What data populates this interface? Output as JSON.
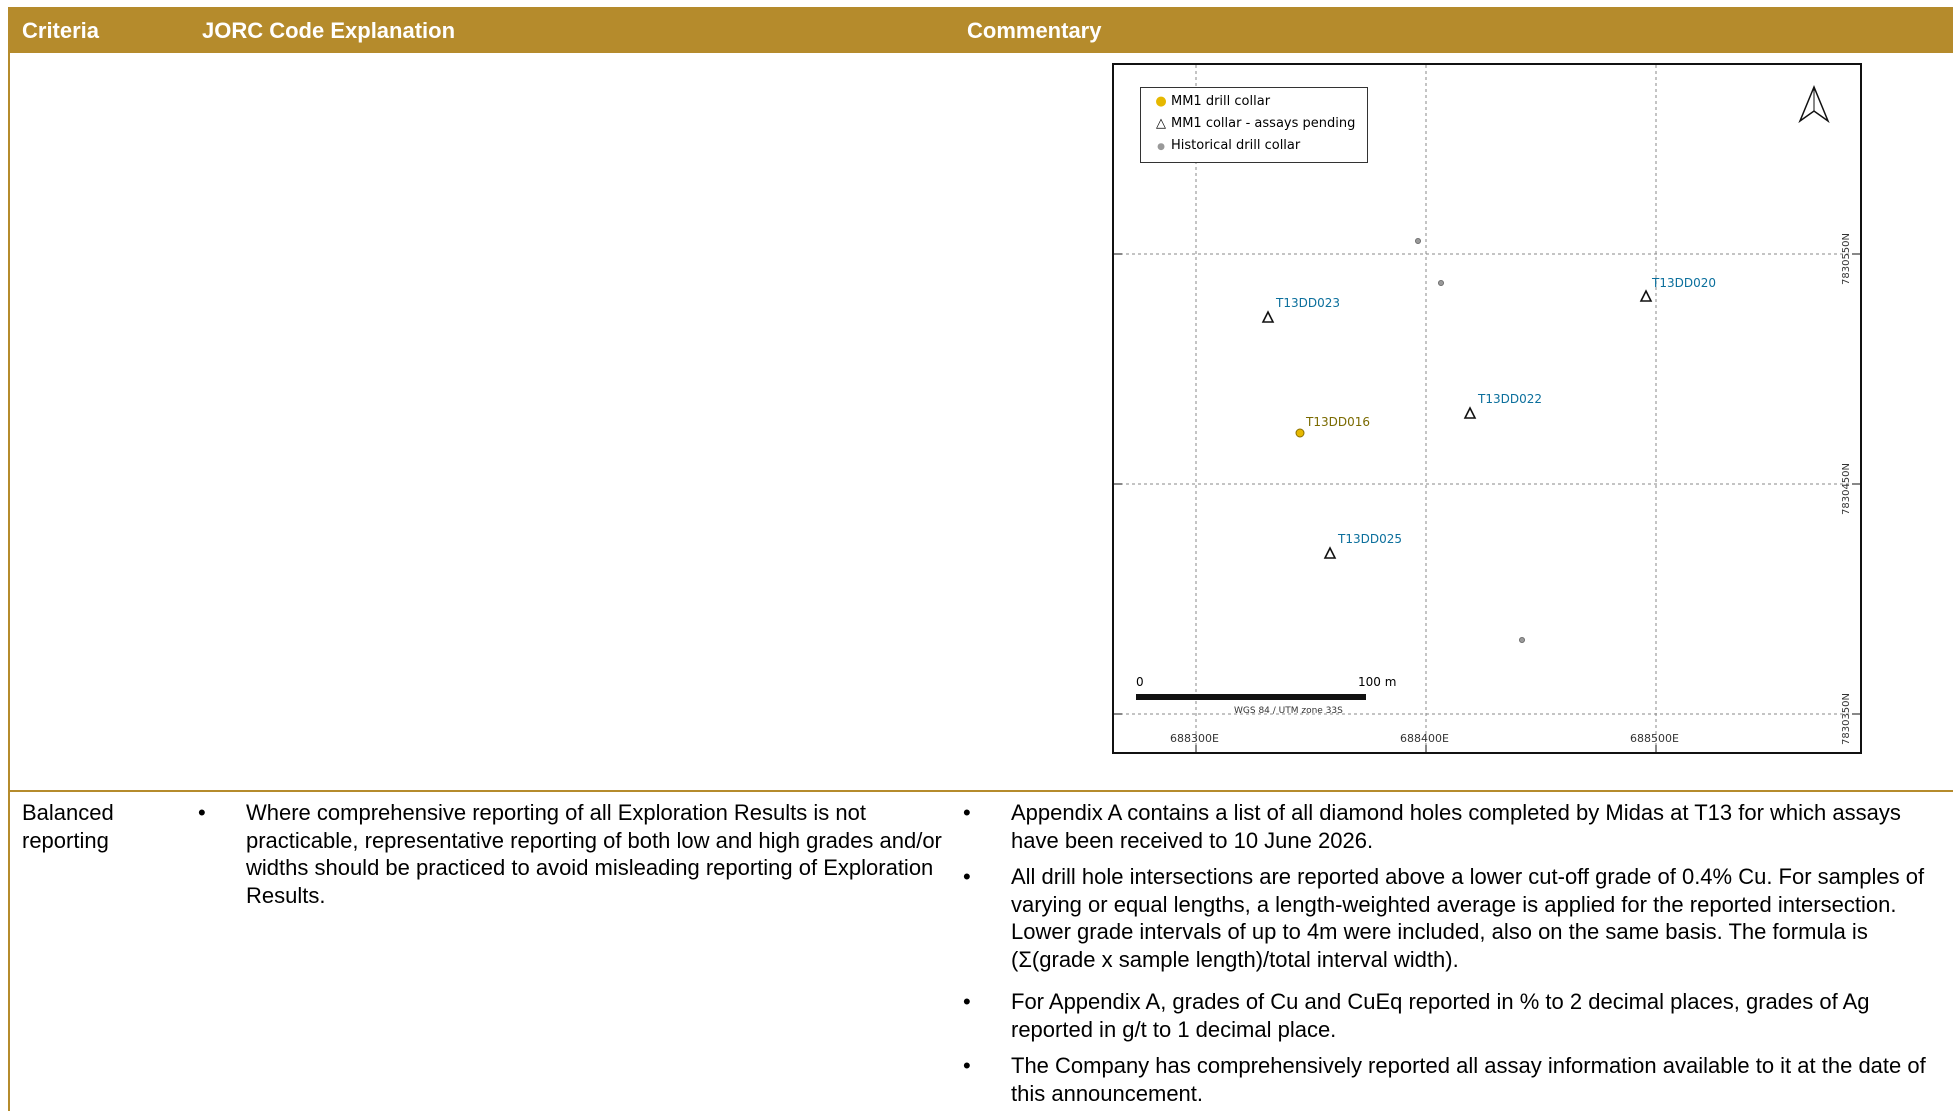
{
  "header": {
    "criteria": "Criteria",
    "explanation": "JORC Code Explanation",
    "commentary": "Commentary"
  },
  "map": {
    "legend": {
      "mm1_collar": "MM1 drill collar",
      "mm1_pending": "MM1 collar - assays pending",
      "historical": "Historical drill collar"
    },
    "collars": {
      "t13dd023": "T13DD023",
      "t13dd020": "T13DD020",
      "t13dd022": "T13DD022",
      "t13dd016": "T13DD016",
      "t13dd025": "T13DD025"
    },
    "scale": {
      "zero": "0",
      "end": "100 m",
      "crs": "WGS 84 / UTM zone 33S"
    },
    "x_ticks": [
      "688300E",
      "688400E",
      "688500E"
    ],
    "y_ticks": [
      "7830550N",
      "7830450N",
      "7830350N"
    ],
    "colors": {
      "mm1": "#e6b800",
      "pending_label": "#0b6f9c",
      "mm1_label": "#7a6a00",
      "header": "#b58b2c"
    }
  },
  "row": {
    "criteria": "Balanced reporting",
    "bullet": "•",
    "explanation": "Where comprehensive reporting of all Exploration Results is not practicable, representative reporting of both low and high grades and/or widths should be practiced to avoid misleading reporting of Exploration Results.",
    "commentary": [
      "Appendix A contains a list of all diamond holes completed by Midas at T13 for which assays have been received to 10 June 2026.",
      "All drill hole intersections are reported above a lower cut-off grade of 0.4% Cu. For samples of varying or equal lengths, a length-weighted average is applied for the reported intersection. Lower grade intervals of up to 4m were included, also on the same basis. The formula is (Σ(grade x sample length)/total interval width).",
      "For Appendix A, grades of Cu and CuEq reported in % to 2 decimal places, grades of Ag reported in g/t to 1 decimal place.",
      "The Company has comprehensively reported all assay information available to it at the date of this announcement."
    ]
  }
}
